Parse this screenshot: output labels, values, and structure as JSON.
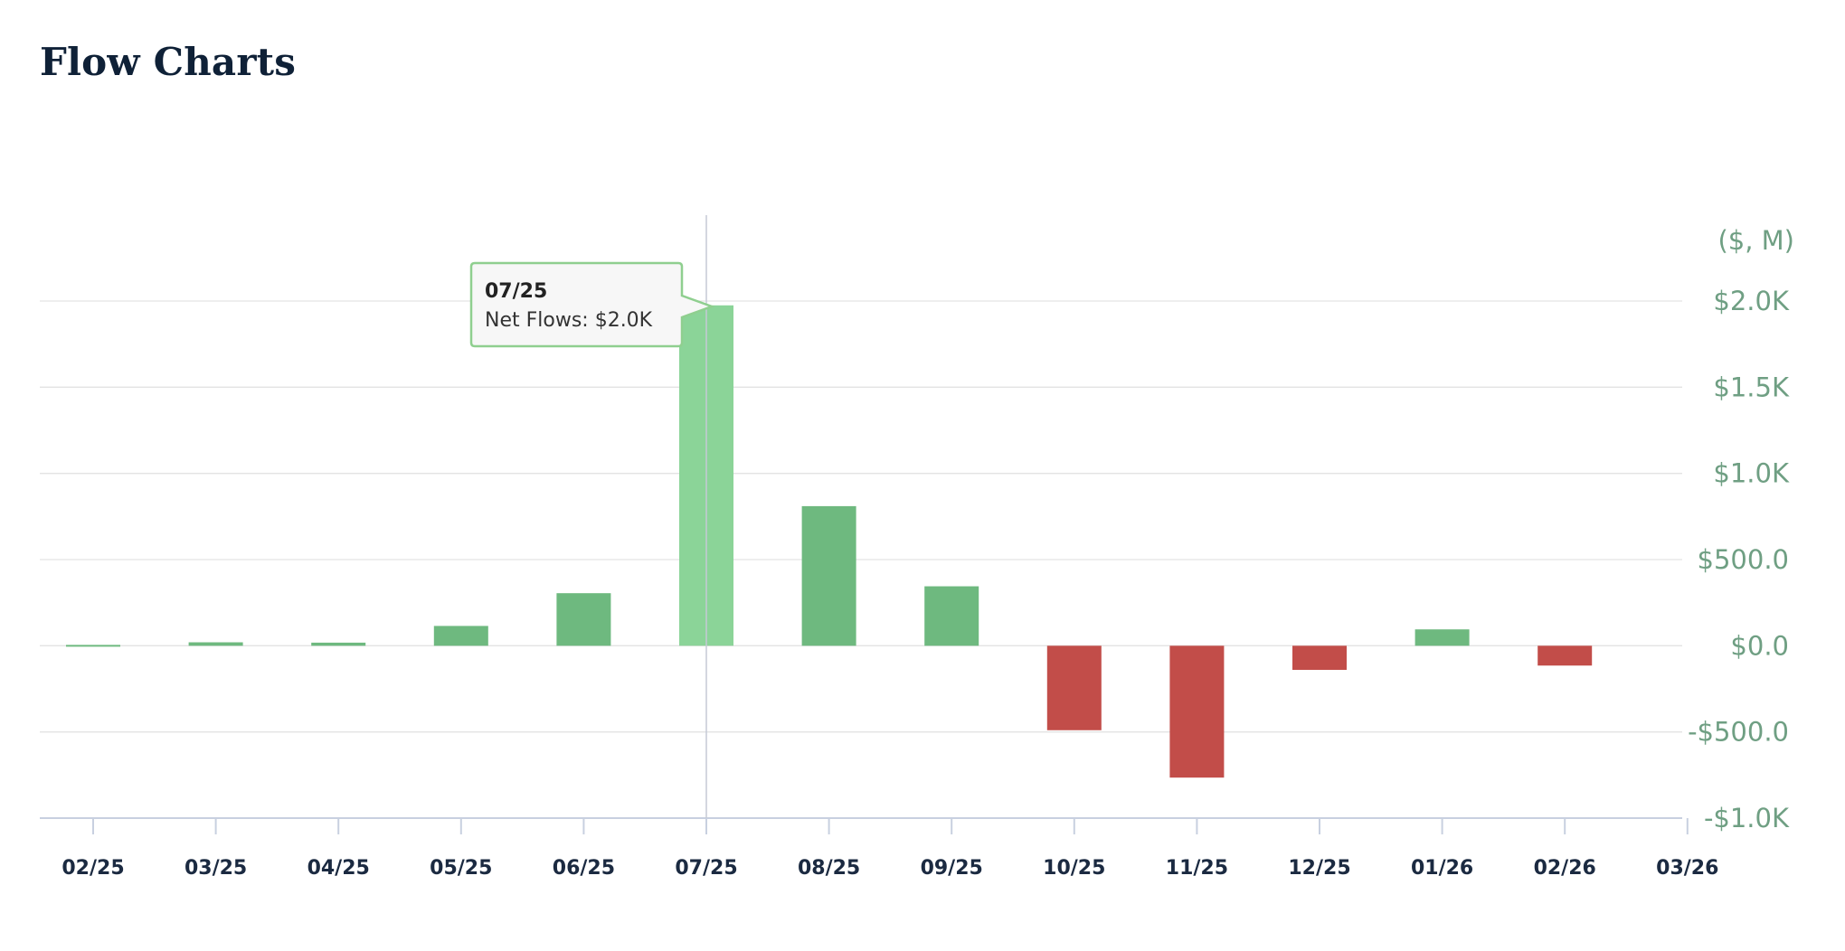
{
  "page": {
    "title": "Flow Charts"
  },
  "colors": {
    "positive": "#6eb97f",
    "positive_highlight": "#8bd498",
    "negative": "#c24d49",
    "axis_label": "#6f9f83"
  },
  "chart_data": {
    "type": "bar",
    "unit_label": "($, M)",
    "categories": [
      "02/25",
      "03/25",
      "04/25",
      "05/25",
      "06/25",
      "07/25",
      "08/25",
      "09/25",
      "10/25",
      "11/25",
      "12/25",
      "01/26",
      "02/26",
      "03/26"
    ],
    "series": [
      {
        "values": [
          5,
          20,
          18,
          115,
          305,
          1975,
          810,
          345,
          -490,
          -765,
          -140,
          95,
          -115,
          null
        ]
      }
    ],
    "ylim": [
      -1000,
      2000
    ],
    "yticks": [
      {
        "value": -1000,
        "label": "-$1.0K"
      },
      {
        "value": -500,
        "label": "-$500.0"
      },
      {
        "value": 0,
        "label": "$0.0"
      },
      {
        "value": 500,
        "label": "$500.0"
      },
      {
        "value": 1000,
        "label": "$1.0K"
      },
      {
        "value": 1500,
        "label": "$1.5K"
      },
      {
        "value": 2000,
        "label": "$2.0K"
      }
    ],
    "grid": true,
    "highlighted_category": "07/25",
    "tooltip": {
      "title": "07/25",
      "text": "Net Flows: $2.0K"
    }
  }
}
